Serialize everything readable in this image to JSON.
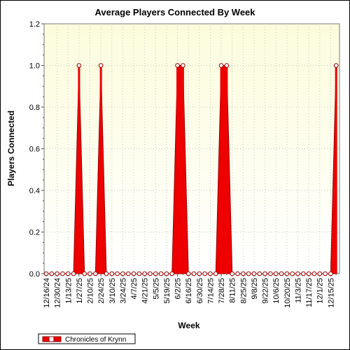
{
  "chart_data": {
    "type": "area",
    "title": "Average Players Connected By Week",
    "xlabel": "Week",
    "ylabel": "Players Connected",
    "ylim": [
      0,
      1.2
    ],
    "yticks": [
      "0.0",
      "0.2",
      "0.4",
      "0.6",
      "0.8",
      "1.0",
      "1.2"
    ],
    "xtick_labels": [
      "12/16/24",
      "12/30/24",
      "1/13/25",
      "1/27/25",
      "2/10/25",
      "2/24/25",
      "3/10/25",
      "3/24/25",
      "4/7/25",
      "4/21/25",
      "5/5/25",
      "5/19/25",
      "6/2/25",
      "6/16/25",
      "6/30/25",
      "7/14/25",
      "7/28/25",
      "8/11/25",
      "8/25/25",
      "9/8/25",
      "9/22/25",
      "10/6/25",
      "10/20/25",
      "11/3/25",
      "11/17/25",
      "12/1/25",
      "12/15/25"
    ],
    "grid": true,
    "legend_position": "bottom-left",
    "colors": {
      "series": "#ee0000",
      "plot_bg_top": "#fcfcdc",
      "plot_bg_bottom": "#ffffff",
      "marker_fill": "#ffffff",
      "grid": "#c8c8c8"
    },
    "series": [
      {
        "name": "Chronicles of Krynn",
        "values": [
          0,
          0,
          0,
          0,
          0,
          0,
          1,
          0,
          0,
          0,
          1,
          0,
          0,
          0,
          0,
          0,
          0,
          0,
          0,
          0,
          0,
          0,
          0,
          0,
          1,
          1,
          0,
          0,
          0,
          0,
          0,
          0,
          1,
          1,
          0,
          0,
          0,
          0,
          0,
          0,
          0,
          0,
          0,
          0,
          0,
          0,
          0,
          0,
          0,
          0,
          0,
          0,
          0,
          1
        ]
      }
    ]
  }
}
